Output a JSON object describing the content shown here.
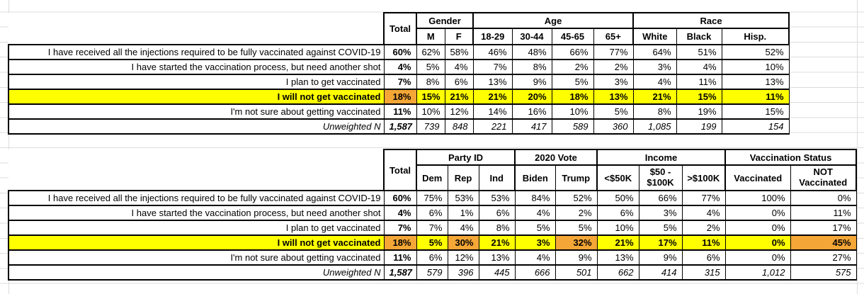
{
  "colors": {
    "highlight_yellow": "#FFFF00",
    "highlight_orange": "#F4A636",
    "grid_line": "#DCDCDC",
    "table_border": "#000000"
  },
  "row_labels": [
    {
      "text": "I have received all the injections required to be fully vaccinated against COVID-19"
    },
    {
      "text": "I have started the vaccination process, but need another shot"
    },
    {
      "text": "I plan to get vaccinated"
    },
    {
      "text": "I will not get vaccinated"
    },
    {
      "text": "I'm not sure about getting vaccinated"
    },
    {
      "text": "Unweighted N"
    }
  ],
  "table1": {
    "total_header": "Total",
    "groups": [
      {
        "label": "Gender",
        "span": 2
      },
      {
        "label": "Age",
        "span": 4
      },
      {
        "label": "Race",
        "span": 3
      }
    ],
    "subheaders": [
      "M",
      "F",
      "18-29",
      "30-44",
      "45-65",
      "65+",
      "White",
      "Black",
      "Hisp."
    ],
    "rows": [
      {
        "values": [
          "60%",
          "62%",
          "58%",
          "46%",
          "48%",
          "66%",
          "77%",
          "64%",
          "51%",
          "52%"
        ]
      },
      {
        "values": [
          "4%",
          "5%",
          "4%",
          "7%",
          "8%",
          "2%",
          "2%",
          "3%",
          "4%",
          "10%"
        ]
      },
      {
        "values": [
          "7%",
          "8%",
          "6%",
          "13%",
          "9%",
          "5%",
          "3%",
          "4%",
          "11%",
          "13%"
        ]
      },
      {
        "values": [
          "18%",
          "15%",
          "21%",
          "21%",
          "20%",
          "18%",
          "13%",
          "21%",
          "15%",
          "11%"
        ],
        "highlight": true,
        "orange": [
          0
        ]
      },
      {
        "values": [
          "11%",
          "10%",
          "12%",
          "14%",
          "16%",
          "10%",
          "5%",
          "8%",
          "19%",
          "15%"
        ]
      },
      {
        "values": [
          "1,587",
          "739",
          "848",
          "221",
          "417",
          "589",
          "360",
          "1,085",
          "199",
          "154"
        ],
        "italic": true
      }
    ]
  },
  "table2": {
    "total_header": "Total",
    "groups": [
      {
        "label": "Party ID",
        "span": 3
      },
      {
        "label": "2020 Vote",
        "span": 2
      },
      {
        "label": "Income",
        "span": 3
      },
      {
        "label": "Vaccination Status",
        "span": 2
      }
    ],
    "subheaders": [
      "Dem",
      "Rep",
      "Ind",
      "Biden",
      "Trump",
      "<$50K",
      "$50 - $100K",
      ">$100K",
      "Vaccinated",
      "NOT Vaccinated"
    ],
    "rows": [
      {
        "values": [
          "60%",
          "75%",
          "53%",
          "53%",
          "84%",
          "52%",
          "50%",
          "66%",
          "77%",
          "100%",
          "0%"
        ]
      },
      {
        "values": [
          "4%",
          "6%",
          "1%",
          "6%",
          "4%",
          "2%",
          "6%",
          "3%",
          "4%",
          "0%",
          "11%"
        ]
      },
      {
        "values": [
          "7%",
          "7%",
          "4%",
          "8%",
          "5%",
          "5%",
          "10%",
          "5%",
          "2%",
          "0%",
          "17%"
        ]
      },
      {
        "values": [
          "18%",
          "5%",
          "30%",
          "21%",
          "3%",
          "32%",
          "21%",
          "17%",
          "11%",
          "0%",
          "45%"
        ],
        "highlight": true,
        "orange": [
          0,
          2,
          5,
          10
        ]
      },
      {
        "values": [
          "11%",
          "6%",
          "12%",
          "13%",
          "4%",
          "9%",
          "13%",
          "9%",
          "6%",
          "0%",
          "27%"
        ]
      },
      {
        "values": [
          "1,587",
          "579",
          "396",
          "445",
          "666",
          "501",
          "662",
          "414",
          "315",
          "1,012",
          "575"
        ],
        "italic": true
      }
    ]
  }
}
